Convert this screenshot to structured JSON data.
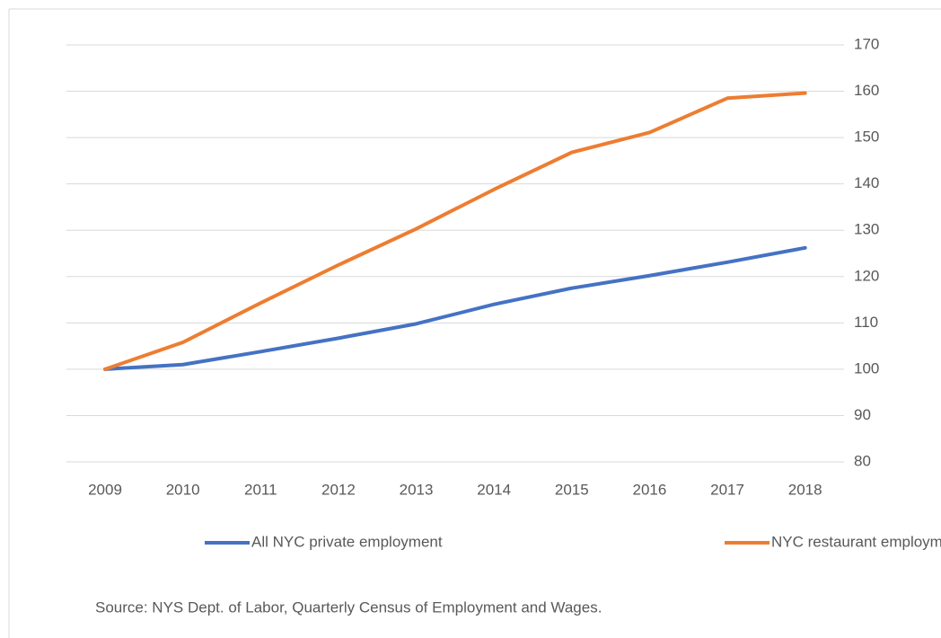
{
  "chart_data": {
    "type": "line",
    "categories": [
      "2009",
      "2010",
      "2011",
      "2012",
      "2013",
      "2014",
      "2015",
      "2016",
      "2017",
      "2018"
    ],
    "series": [
      {
        "name": "All NYC private employment",
        "color": "#4472c4",
        "values": [
          100,
          101,
          103.8,
          106.7,
          109.8,
          114,
          117.5,
          120.2,
          123.1,
          126.2
        ]
      },
      {
        "name": "NYC restaurant employment",
        "color": "#ed7d31",
        "values": [
          100,
          105.8,
          114.3,
          122.5,
          130.3,
          138.8,
          146.8,
          151.1,
          158.5,
          159.6
        ]
      }
    ],
    "ylim": [
      80,
      170
    ],
    "yticks": [
      80,
      90,
      100,
      110,
      120,
      130,
      140,
      150,
      160,
      170
    ],
    "y_axis_side": "right",
    "grid": true,
    "legend": "bottom",
    "source": "Source: NYS Dept. of Labor, Quarterly Census of Employment and Wages."
  }
}
